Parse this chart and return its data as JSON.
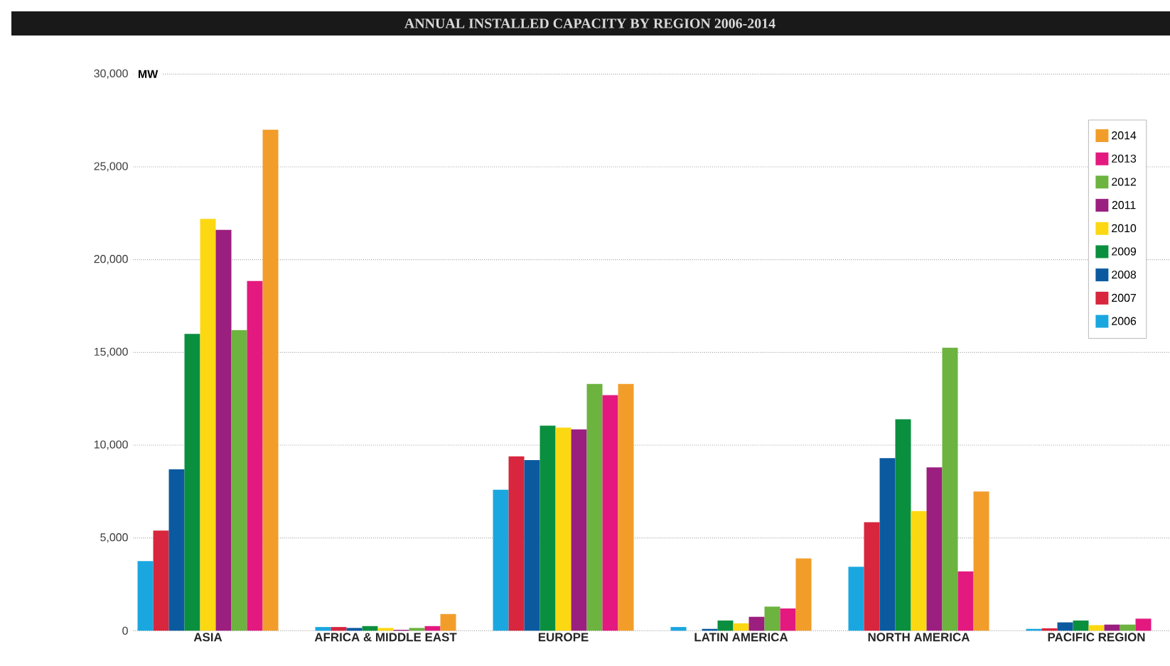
{
  "chart_data": {
    "type": "bar",
    "title": "ANNUAL INSTALLED CAPACITY BY REGION 2006-2014",
    "ylabel": "MW",
    "categories": [
      "ASIA",
      "AFRICA & MIDDLE EAST",
      "EUROPE",
      "LATIN AMERICA",
      "NORTH AMERICA",
      "PACIFIC REGION"
    ],
    "series": [
      {
        "name": "2006",
        "color": "#1aa7e0",
        "values": [
          3750,
          200,
          7600,
          200,
          3450,
          100
        ]
      },
      {
        "name": "2007",
        "color": "#d7263d",
        "values": [
          5400,
          200,
          9400,
          null,
          5850,
          130
        ]
      },
      {
        "name": "2008",
        "color": "#0b5aa0",
        "values": [
          8700,
          150,
          9200,
          100,
          9300,
          450
        ]
      },
      {
        "name": "2009",
        "color": "#0a8f3f",
        "values": [
          16000,
          250,
          11050,
          550,
          11400,
          550
        ]
      },
      {
        "name": "2010",
        "color": "#fcd813",
        "values": [
          22200,
          150,
          10950,
          400,
          6450,
          300
        ]
      },
      {
        "name": "2011",
        "color": "#9b1f7e",
        "values": [
          21600,
          50,
          10850,
          750,
          8800,
          330
        ]
      },
      {
        "name": "2012",
        "color": "#6cb33f",
        "values": [
          16200,
          150,
          13300,
          1300,
          15250,
          330
        ]
      },
      {
        "name": "2013",
        "color": "#e3197f",
        "values": [
          18850,
          250,
          12700,
          1200,
          3200,
          650
        ]
      },
      {
        "name": "2014",
        "color": "#f29d2a",
        "values": [
          27000,
          900,
          13300,
          3900,
          7500,
          null
        ]
      }
    ],
    "ylim": [
      0,
      30000
    ],
    "yticks": [
      0,
      {
        "value": 5000,
        "label": "5,000"
      },
      {
        "value": 10000,
        "label": "10,000"
      },
      {
        "value": 15000,
        "label": "15,000"
      },
      {
        "value": 20000,
        "label": "20,000"
      },
      {
        "value": 25000,
        "label": "25,000"
      },
      {
        "value": 30000,
        "label": "30,000"
      }
    ],
    "grid": "y",
    "legend": "top right"
  }
}
